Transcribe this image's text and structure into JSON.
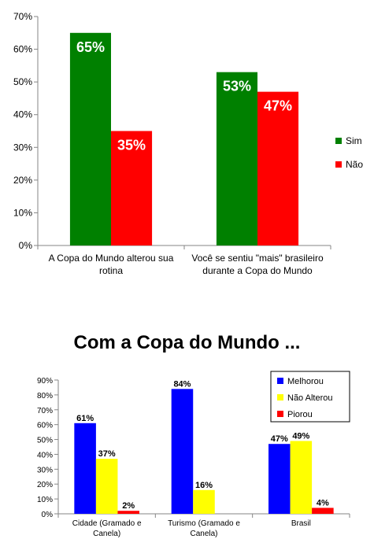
{
  "chart_data": [
    {
      "type": "bar",
      "categories": [
        [
          "A Copa do Mundo alterou sua",
          "rotina"
        ],
        [
          "Você se sentiu \"mais\" brasileiro",
          "durante a Copa do Mundo"
        ]
      ],
      "series": [
        {
          "name": "Sim",
          "values": [
            65,
            53
          ],
          "color": "#008000",
          "labels": [
            "65%",
            "53%"
          ]
        },
        {
          "name": "Não",
          "values": [
            35,
            47
          ],
          "color": "#ff0000",
          "labels": [
            "35%",
            "47%"
          ]
        }
      ],
      "ylim": [
        0,
        70
      ],
      "yticks": [
        "0%",
        "10%",
        "20%",
        "30%",
        "40%",
        "50%",
        "60%",
        "70%"
      ],
      "legend_position": "right",
      "grid": false
    },
    {
      "type": "bar",
      "title": "Com a Copa do Mundo ...",
      "categories": [
        [
          "Cidade (Gramado e",
          "Canela)"
        ],
        [
          "Turismo (Gramado e",
          "Canela)"
        ],
        [
          "Brasil"
        ]
      ],
      "series": [
        {
          "name": "Melhorou",
          "values": [
            61,
            84,
            47
          ],
          "color": "#0000ff",
          "labels": [
            "61%",
            "84%",
            "47%"
          ]
        },
        {
          "name": "Não Alterou",
          "values": [
            37,
            16,
            49
          ],
          "color": "#ffff00",
          "labels": [
            "37%",
            "16%",
            "49%"
          ]
        },
        {
          "name": "Piorou",
          "values": [
            2,
            0,
            4
          ],
          "color": "#ff0000",
          "labels": [
            "2%",
            "",
            "4%"
          ]
        }
      ],
      "ylim": [
        0,
        90
      ],
      "yticks": [
        "0%",
        "10%",
        "20%",
        "30%",
        "40%",
        "50%",
        "60%",
        "70%",
        "80%",
        "90%"
      ],
      "legend_position": "top-right",
      "grid": false
    }
  ]
}
